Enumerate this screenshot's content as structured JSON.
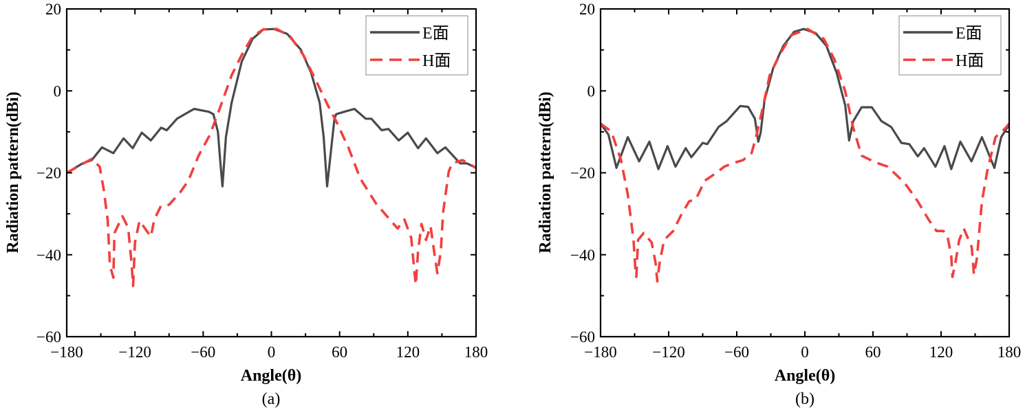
{
  "chart_data": [
    {
      "type": "line",
      "caption": "(a)",
      "xlabel": "Angle(θ)",
      "ylabel": "Radiation pattern(dBi)",
      "xlim": [
        -180,
        180
      ],
      "ylim": [
        -60,
        20
      ],
      "xticks": [
        -180,
        -120,
        -60,
        0,
        60,
        120,
        180
      ],
      "yticks": [
        -60,
        -40,
        -20,
        0,
        20
      ],
      "xtick_labels": [
        "−180",
        "−120",
        "−60",
        "0",
        "60",
        "120",
        "180"
      ],
      "ytick_labels": [
        "−60",
        "−40",
        "−20",
        "0",
        "20"
      ],
      "legend_position": "top-right",
      "grid": false,
      "series": [
        {
          "name": "E面",
          "color": "#4a4a4a",
          "style": "solid",
          "x": [
            -180,
            -166,
            -158,
            -149,
            -139,
            -130,
            -122,
            -114,
            -106,
            -97,
            -92,
            -83,
            -68,
            -55,
            -51,
            -47,
            -45,
            -43,
            -40,
            -35,
            -26,
            -16.5,
            -7,
            2.4,
            14,
            26,
            35,
            42.5,
            46,
            49,
            55.5,
            57,
            64,
            73,
            83,
            88,
            97,
            103,
            112,
            120,
            129,
            136,
            146,
            153,
            166,
            172,
            180
          ],
          "y": [
            -20,
            -17.7,
            -16.9,
            -13.8,
            -15.2,
            -11.6,
            -14,
            -10.2,
            -12.1,
            -9,
            -9.6,
            -6.8,
            -4.4,
            -5.1,
            -5.7,
            -10,
            -17,
            -23.3,
            -11.3,
            -2.9,
            7.2,
            12.7,
            15,
            15.1,
            13.9,
            10,
            4.4,
            -2.9,
            -11.3,
            -23.3,
            -6.8,
            -5.7,
            -5.1,
            -4.4,
            -6.8,
            -6.8,
            -9.6,
            -9.3,
            -12.1,
            -10.2,
            -14,
            -11.6,
            -15.2,
            -13.8,
            -17.7,
            -17.7,
            -18.8
          ]
        },
        {
          "name": "H面",
          "color": "#f0403f",
          "style": "dashed",
          "x": [
            -180,
            -158,
            -151,
            -147.5,
            -144,
            -142,
            -139,
            -138,
            -131,
            -126,
            -123,
            -121.6,
            -120,
            -116,
            -106,
            -103,
            -97,
            -90,
            -80,
            -73,
            -64,
            -54,
            -45,
            -35,
            -26,
            -16.5,
            -7,
            4.7,
            16.5,
            28,
            38,
            49.6,
            57,
            68,
            78,
            92,
            106,
            111,
            117,
            123,
            126,
            127,
            129,
            132,
            136,
            140,
            144,
            146,
            149,
            151,
            156,
            159,
            168,
            180
          ],
          "y": [
            -20,
            -16.6,
            -18.5,
            -24,
            -31.4,
            -42.6,
            -45.6,
            -34.7,
            -30.6,
            -33.4,
            -42,
            -47.6,
            -37,
            -31.7,
            -35.6,
            -31.4,
            -28,
            -27.8,
            -24.7,
            -21.9,
            -15.8,
            -10.7,
            -4,
            3.8,
            8.8,
            13.3,
            15,
            15.1,
            13.3,
            8.8,
            3.2,
            -3.5,
            -7.4,
            -14,
            -21.3,
            -27.5,
            -32,
            -33.6,
            -31.4,
            -35.9,
            -44.8,
            -47.3,
            -39.2,
            -32.5,
            -36.4,
            -33,
            -40.9,
            -44.5,
            -39.2,
            -29.7,
            -19.7,
            -17.7,
            -16.9,
            -18.8
          ]
        }
      ]
    },
    {
      "type": "line",
      "caption": "(b)",
      "xlabel": "Angle(θ)",
      "ylabel": "Radiation pattern(dBi)",
      "xlim": [
        -180,
        180
      ],
      "ylim": [
        -60,
        20
      ],
      "xticks": [
        -180,
        -120,
        -60,
        0,
        60,
        120,
        180
      ],
      "yticks": [
        -60,
        -40,
        -20,
        0,
        20
      ],
      "xtick_labels": [
        "−180",
        "−120",
        "−60",
        "0",
        "60",
        "120",
        "180"
      ],
      "ytick_labels": [
        "−60",
        "−40",
        "−20",
        "0",
        "20"
      ],
      "legend_position": "top-right",
      "grid": false,
      "series": [
        {
          "name": "E面",
          "color": "#4a4a4a",
          "style": "solid",
          "x": [
            -180,
            -173,
            -166,
            -156,
            -146,
            -137,
            -129,
            -121,
            -114,
            -105,
            -100,
            -90,
            -86,
            -76,
            -69,
            -57,
            -50,
            -44,
            -41,
            -39,
            -35.5,
            -28,
            -19,
            -9.5,
            -1,
            9.5,
            19,
            28,
            35.5,
            39,
            42.6,
            50,
            59,
            67.5,
            76,
            85,
            92,
            99.5,
            105,
            115,
            123,
            129,
            137,
            146.8,
            156,
            167,
            173,
            180
          ],
          "y": [
            -8,
            -10.7,
            -18.8,
            -11.3,
            -17.2,
            -12.4,
            -19.1,
            -13.5,
            -18.5,
            -14,
            -16.2,
            -12.7,
            -13,
            -8.8,
            -7.4,
            -3.7,
            -3.9,
            -6.8,
            -12.4,
            -10.2,
            -2.3,
            5.5,
            11,
            14.4,
            15.1,
            14.1,
            11,
            4.4,
            -3.5,
            -12.1,
            -7.4,
            -4,
            -4,
            -7.4,
            -8.8,
            -12.7,
            -13,
            -16,
            -14,
            -18.5,
            -13.5,
            -19.1,
            -12.4,
            -17.2,
            -11.3,
            -18.8,
            -11.3,
            -8.2
          ]
        },
        {
          "name": "H面",
          "color": "#f0403f",
          "style": "dashed",
          "x": [
            -180,
            -170.5,
            -162,
            -156,
            -151,
            -149,
            -148.5,
            -147,
            -142,
            -135,
            -131.5,
            -130,
            -128,
            -124,
            -116,
            -109,
            -102,
            -96,
            -88,
            -79,
            -71,
            -64,
            -54.5,
            -47,
            -43,
            -37,
            -31,
            -21,
            -12,
            2.4,
            16.6,
            26,
            35.5,
            42.6,
            50,
            61.6,
            73,
            88,
            99.5,
            109,
            116,
            122,
            125.5,
            129,
            130,
            132.6,
            136,
            140,
            147,
            149,
            151.6,
            156,
            161,
            168,
            177,
            180
          ],
          "y": [
            -8,
            -9.9,
            -16.9,
            -25.3,
            -36.4,
            -44.8,
            -45.4,
            -36.4,
            -34.7,
            -37,
            -42,
            -46.5,
            -42,
            -36.4,
            -34.2,
            -30.3,
            -27,
            -26.4,
            -21.9,
            -20.2,
            -18.5,
            -17.7,
            -16.9,
            -15.2,
            -11.3,
            -4,
            3.8,
            9.4,
            13.6,
            15.1,
            12.7,
            7.7,
            -0.1,
            -9,
            -15.8,
            -17.4,
            -18.5,
            -22.5,
            -27,
            -31.4,
            -34.2,
            -34.2,
            -35.3,
            -40.3,
            -45.4,
            -42,
            -36.4,
            -33.6,
            -38.1,
            -44.8,
            -40.9,
            -26.9,
            -19.1,
            -11.3,
            -9,
            -8
          ]
        }
      ]
    }
  ]
}
